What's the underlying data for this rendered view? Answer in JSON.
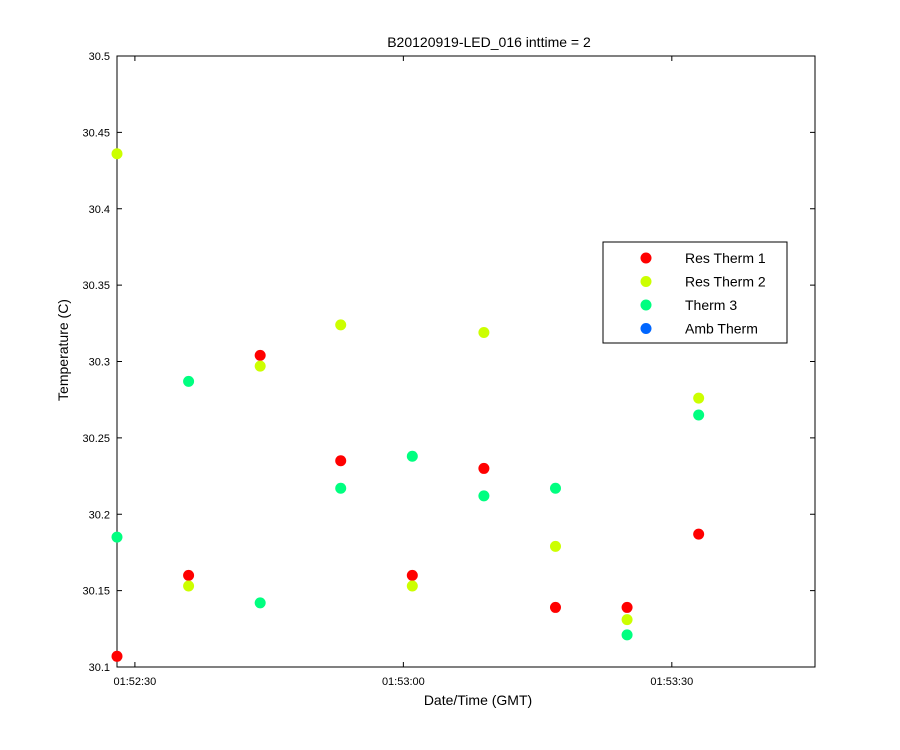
{
  "chart_data": {
    "type": "scatter",
    "title": "B20120919-LED_016 inttime = 2",
    "xlabel": "Date/Time (GMT)",
    "ylabel": "Temperature (C)",
    "x_axis_kind": "time",
    "xlim": [
      "01:52:28",
      "01:53:46"
    ],
    "ylim": [
      30.1,
      30.5
    ],
    "x_ticks": [
      "01:52:30",
      "01:53:00",
      "01:53:30"
    ],
    "y_ticks": [
      "30.1",
      "30.15",
      "30.2",
      "30.25",
      "30.3",
      "30.35",
      "30.4",
      "30.45",
      "30.5"
    ],
    "grid": false,
    "legend_position": "right",
    "series": [
      {
        "name": "Res Therm 1",
        "color": "#ff0000",
        "x": [
          "01:52:28",
          "01:52:36",
          "01:52:44",
          "01:52:53",
          "01:53:01",
          "01:53:09",
          "01:53:17",
          "01:53:25",
          "01:53:33"
        ],
        "y": [
          30.107,
          30.16,
          30.304,
          30.235,
          30.16,
          30.23,
          30.139,
          30.139,
          30.187
        ]
      },
      {
        "name": "Res Therm 2",
        "color": "#ccff00",
        "x": [
          "01:52:28",
          "01:52:36",
          "01:52:44",
          "01:52:53",
          "01:53:01",
          "01:53:09",
          "01:53:17",
          "01:53:25",
          "01:53:33"
        ],
        "y": [
          30.436,
          30.153,
          30.297,
          30.324,
          30.153,
          30.319,
          30.179,
          30.131,
          30.276
        ]
      },
      {
        "name": "Therm 3",
        "color": "#00ff80",
        "x": [
          "01:52:28",
          "01:52:36",
          "01:52:44",
          "01:52:53",
          "01:53:01",
          "01:53:09",
          "01:53:17",
          "01:53:25",
          "01:53:33"
        ],
        "y": [
          30.185,
          30.287,
          30.142,
          30.217,
          30.238,
          30.212,
          30.217,
          30.121,
          30.265
        ]
      },
      {
        "name": "Amb Therm",
        "color": "#0066ff",
        "x": [],
        "y": []
      }
    ]
  }
}
